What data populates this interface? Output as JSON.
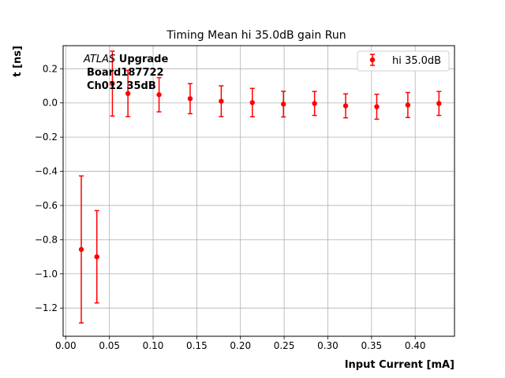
{
  "chart_data": {
    "type": "scatter",
    "title": "Timing Mean hi 35.0dB gain Run",
    "xlabel": "Input Current [mA]",
    "ylabel": "t [ns]",
    "xlim": [
      -0.003,
      0.445
    ],
    "ylim": [
      -1.365,
      0.335
    ],
    "x_ticks": [
      0.0,
      0.05,
      0.1,
      0.15,
      0.2,
      0.25,
      0.3,
      0.35,
      0.4
    ],
    "x_tick_labels": [
      "0.00",
      "0.05",
      "0.10",
      "0.15",
      "0.20",
      "0.25",
      "0.30",
      "0.35",
      "0.40"
    ],
    "y_ticks": [
      0.2,
      0.0,
      -0.2,
      -0.4,
      -0.6,
      -0.8,
      -1.0,
      -1.2
    ],
    "y_tick_labels": [
      "0.2",
      "0.0",
      "−0.2",
      "−0.4",
      "−0.6",
      "−0.8",
      "−1.0",
      "−1.2"
    ],
    "grid": true,
    "legend_position": "top-right",
    "annotation": {
      "line1_italic": "ATLAS",
      "line1_bold": " Upgrade",
      "line2": "Board187722",
      "line3": "Ch012 35dB"
    },
    "series": [
      {
        "name": "hi 35.0dB",
        "color": "#ff0000",
        "x": [
          0.0178,
          0.0356,
          0.0534,
          0.0712,
          0.1068,
          0.1424,
          0.178,
          0.2136,
          0.2492,
          0.2848,
          0.3204,
          0.356,
          0.3916,
          0.4272
        ],
        "y": [
          -0.857,
          -0.9,
          0.113,
          0.055,
          0.048,
          0.025,
          0.01,
          0.002,
          -0.007,
          -0.003,
          -0.017,
          -0.022,
          -0.012,
          -0.003
        ],
        "err": [
          0.43,
          0.27,
          0.19,
          0.135,
          0.1,
          0.088,
          0.09,
          0.083,
          0.075,
          0.07,
          0.07,
          0.073,
          0.073,
          0.07
        ]
      }
    ]
  }
}
